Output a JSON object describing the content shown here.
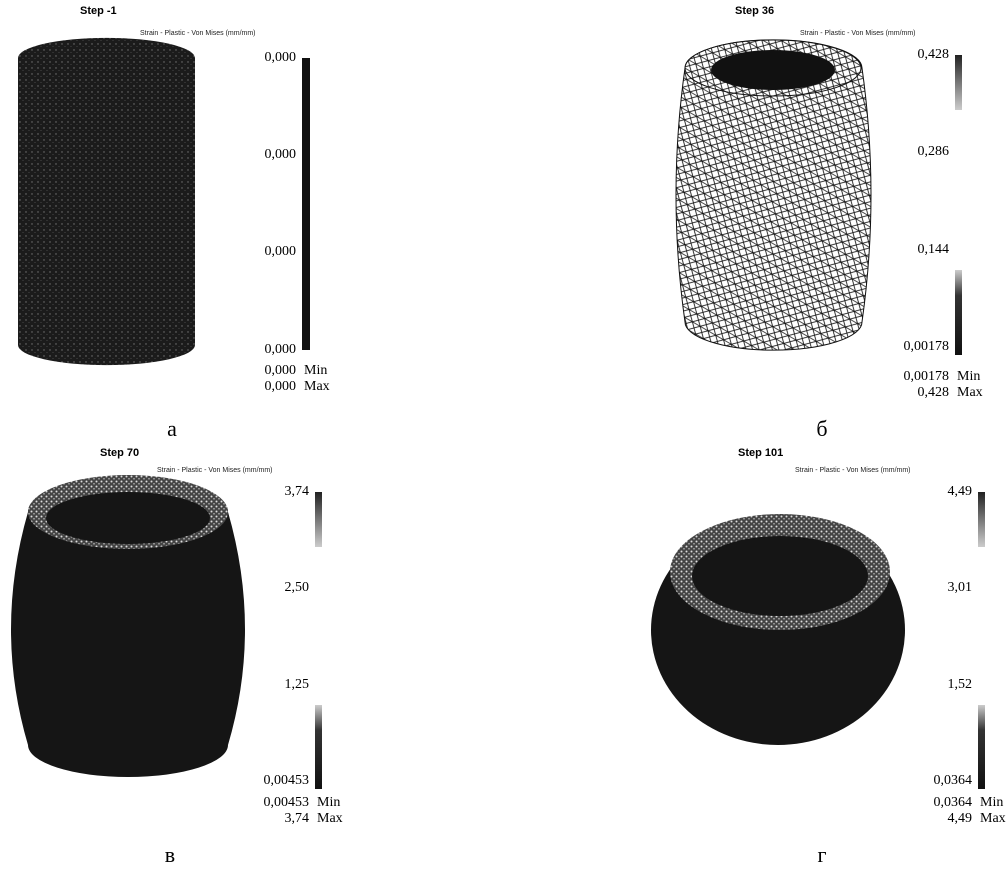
{
  "panels": [
    {
      "step": "Step  -1",
      "quantity": "Strain - Plastic - Von Mises (mm/mm)",
      "scale": [
        "0,000",
        "0,000",
        "0,000",
        "0,000"
      ],
      "min": "0,000",
      "min_label": "Min",
      "max": "0,000",
      "max_label": "Max",
      "caption": "а"
    },
    {
      "step": "Step  36",
      "quantity": "Strain - Plastic - Von Mises (mm/mm)",
      "scale": [
        "0,428",
        "0,286",
        "0,144",
        "0,00178"
      ],
      "min": "0,00178",
      "min_label": "Min",
      "max": "0,428",
      "max_label": "Max",
      "caption": "б"
    },
    {
      "step": "Step  70",
      "quantity": "Strain - Plastic - Von Mises (mm/mm)",
      "scale": [
        "3,74",
        "2,50",
        "1,25",
        "0,00453"
      ],
      "min": "0,00453",
      "min_label": "Min",
      "max": "3,74",
      "max_label": "Max",
      "caption": "в"
    },
    {
      "step": "Step  101",
      "quantity": "Strain - Plastic - Von Mises (mm/mm)",
      "scale": [
        "4,49",
        "3,01",
        "1,52",
        "0,0364"
      ],
      "min": "0,0364",
      "min_label": "Min",
      "max": "4,49",
      "max_label": "Max",
      "caption": "г"
    }
  ]
}
